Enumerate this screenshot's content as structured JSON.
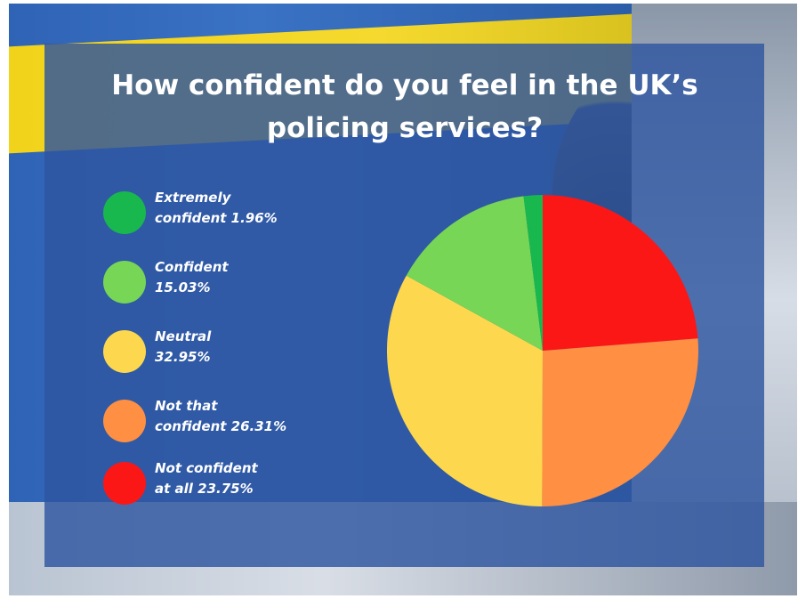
{
  "chart_data": {
    "type": "pie",
    "title": "How confident do you feel in the UK’s policing services?",
    "series": [
      {
        "label_line1": "Extremely",
        "label_line2": "confident 1.96%",
        "value": 1.96,
        "color": "#19b84e"
      },
      {
        "label_line1": "Confident",
        "label_line2": "15.03%",
        "value": 15.03,
        "color": "#77d656"
      },
      {
        "label_line1": "Neutral",
        "label_line2": "32.95%",
        "value": 32.95,
        "color": "#fdd84e"
      },
      {
        "label_line1": "Not that",
        "label_line2": "confident 26.31%",
        "value": 26.31,
        "color": "#fe8f43"
      },
      {
        "label_line1": "Not confident",
        "label_line2": "at all 23.75%",
        "value": 23.75,
        "color": "#fc1717"
      }
    ],
    "slice_order_clockwise_from_top": [
      4,
      3,
      2,
      1,
      0
    ],
    "legend_position": "left"
  }
}
